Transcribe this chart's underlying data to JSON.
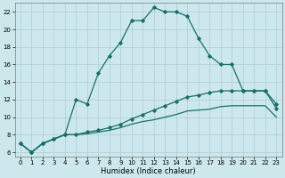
{
  "title": "",
  "xlabel": "Humidex (Indice chaleur)",
  "ylabel": "",
  "xlim": [
    -0.5,
    23.5
  ],
  "ylim": [
    5.5,
    23.0
  ],
  "yticks": [
    6,
    8,
    10,
    12,
    14,
    16,
    18,
    20,
    22
  ],
  "xticks": [
    0,
    1,
    2,
    3,
    4,
    5,
    6,
    7,
    8,
    9,
    10,
    11,
    12,
    13,
    14,
    15,
    16,
    17,
    18,
    19,
    20,
    21,
    22,
    23
  ],
  "background_color": "#cde8ec",
  "grid_color": "#aacdd4",
  "line_color": "#1a6e6a",
  "series": [
    {
      "x": [
        0,
        1,
        2,
        3,
        4,
        5,
        6,
        7,
        8,
        9,
        10,
        11,
        12,
        13,
        14,
        15,
        16,
        17,
        18,
        19,
        20,
        21,
        22,
        23
      ],
      "y": [
        7,
        6,
        7,
        7.5,
        8,
        12,
        11.5,
        15,
        17,
        18.5,
        21,
        21,
        22.5,
        22,
        22,
        21.5,
        19,
        17,
        16,
        16,
        13,
        13,
        13,
        11
      ],
      "marker": "D",
      "markersize": 1.8,
      "linewidth": 0.9
    },
    {
      "x": [
        0,
        1,
        2,
        3,
        4,
        5,
        6,
        7,
        8,
        9,
        10,
        11,
        12,
        13,
        14,
        15,
        16,
        17,
        18,
        19,
        20,
        21,
        22,
        23
      ],
      "y": [
        7,
        6,
        7,
        7.5,
        8,
        8,
        8.3,
        8.5,
        8.8,
        9.2,
        9.8,
        10.3,
        10.8,
        11.3,
        11.8,
        12.3,
        12.5,
        12.8,
        13,
        13,
        13,
        13,
        13,
        11.5
      ],
      "marker": "D",
      "markersize": 1.8,
      "linewidth": 0.9
    },
    {
      "x": [
        0,
        1,
        2,
        3,
        4,
        5,
        6,
        7,
        8,
        9,
        10,
        11,
        12,
        13,
        14,
        15,
        16,
        17,
        18,
        19,
        20,
        21,
        22,
        23
      ],
      "y": [
        7,
        6,
        7,
        7.5,
        8,
        8,
        8.1,
        8.3,
        8.5,
        8.8,
        9.2,
        9.5,
        9.7,
        10.0,
        10.3,
        10.7,
        10.8,
        10.9,
        11.2,
        11.3,
        11.3,
        11.3,
        11.3,
        10.0
      ],
      "marker": null,
      "markersize": 0,
      "linewidth": 0.9
    }
  ]
}
